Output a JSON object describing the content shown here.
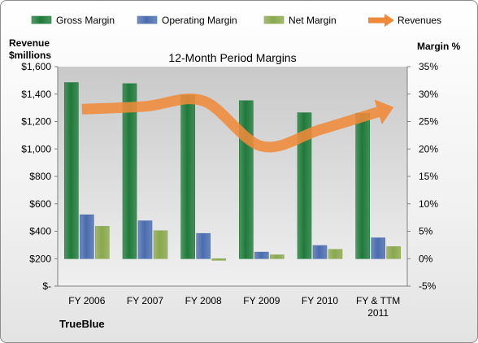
{
  "chart_data": {
    "type": "bar",
    "title": "12-Month Period Margins",
    "company": "TrueBlue",
    "left_axis_title": [
      "Revenue",
      "$millions"
    ],
    "right_axis_title": "Margin %",
    "categories": [
      [
        "FY 2006"
      ],
      [
        "FY 2007"
      ],
      [
        "FY 2008"
      ],
      [
        "FY 2009"
      ],
      [
        "FY 2010"
      ],
      [
        "FY & TTM",
        "2011"
      ]
    ],
    "left_axis": {
      "min": 0,
      "max": 1600,
      "step": 200,
      "tick_labels": [
        "$-",
        "$200",
        "$400",
        "$600",
        "$800",
        "$1,000",
        "$1,200",
        "$1,400",
        "$1,600"
      ]
    },
    "right_axis": {
      "min": -5,
      "max": 35,
      "step": 5,
      "tick_labels": [
        "-5%",
        "0%",
        "5%",
        "10%",
        "15%",
        "20%",
        "25%",
        "30%",
        "35%"
      ]
    },
    "grid": false,
    "legend_position": "top",
    "series": [
      {
        "name": "Gross Margin",
        "axis": "right",
        "type": "bar",
        "color": "#1e7a3a",
        "values": [
          32.1,
          31.9,
          29.8,
          28.8,
          26.6,
          26.5
        ]
      },
      {
        "name": "Operating Margin",
        "axis": "right",
        "type": "bar",
        "color": "#4a6cae",
        "values": [
          8.0,
          6.9,
          4.6,
          1.2,
          2.4,
          3.8
        ]
      },
      {
        "name": "Net Margin",
        "axis": "right",
        "type": "bar",
        "color": "#8aa84c",
        "values": [
          5.9,
          5.1,
          -0.3,
          0.7,
          1.7,
          2.2
        ]
      },
      {
        "name": "Revenues",
        "axis": "left",
        "type": "line",
        "color": "#ef8a3a",
        "values": [
          1290,
          1310,
          1350,
          1020,
          1140,
          1270
        ]
      }
    ]
  }
}
